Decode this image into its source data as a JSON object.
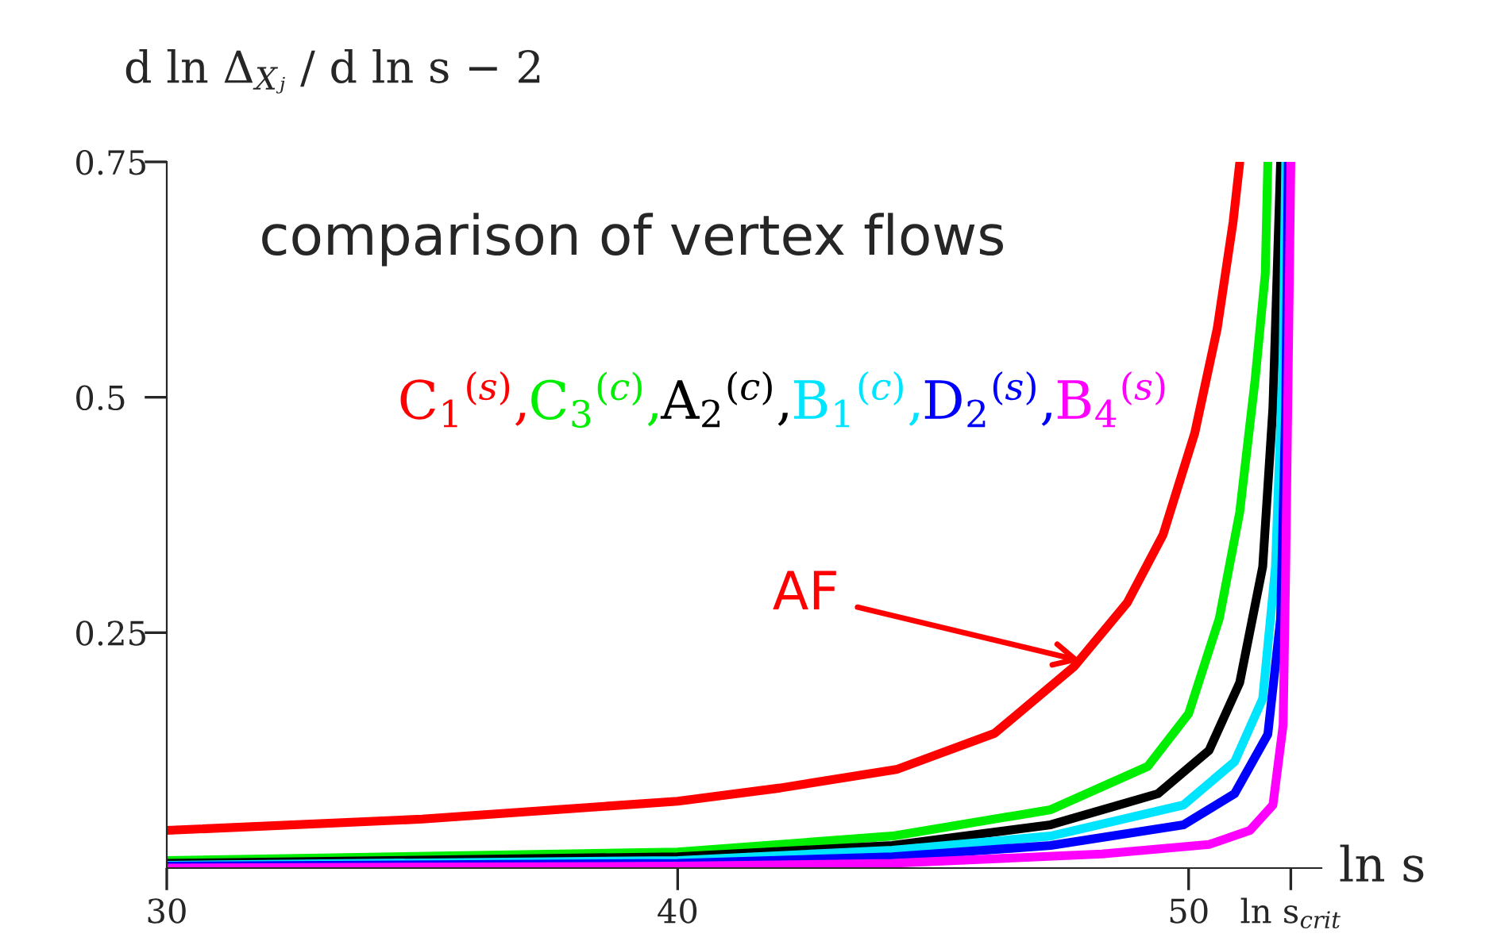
{
  "chart_data": {
    "type": "line",
    "title": "comparison of vertex flows",
    "ylabel": "d ln Δ$_{Xⱼ}$ / d ln s − 2",
    "xlabel": "ln s",
    "xlim": [
      30,
      52.6
    ],
    "xticks": [
      30,
      40,
      50,
      {
        "value": 52,
        "label": "ln s$_{crit}$"
      }
    ],
    "ylim": [
      0,
      0.75
    ],
    "yticks": [
      0.25,
      0.5,
      0.75
    ],
    "grid": false,
    "line_style": "solid",
    "marker": "none",
    "annotations": [
      {
        "text": "AF",
        "x": 47.9,
        "y": 0.22
      }
    ],
    "series": [
      {
        "name": "C$_{1}$$^{(s)}$,",
        "color": "#ff0000",
        "x": [
          30,
          35,
          40,
          42,
          44.3,
          46.2,
          47.76,
          48.8,
          49.5,
          50.12,
          50.56,
          50.87,
          51.0
        ],
        "values": [
          0.04,
          0.052,
          0.071,
          0.085,
          0.105,
          0.143,
          0.214,
          0.282,
          0.354,
          0.462,
          0.573,
          0.686,
          0.749
        ]
      },
      {
        "name": "C$_{3}$$^{(c)}$,",
        "color": "#00ee00",
        "x": [
          30,
          40,
          44.2,
          47.3,
          49.2,
          50.0,
          50.6,
          51.0,
          51.3,
          51.5,
          51.55
        ],
        "values": [
          0.008,
          0.017,
          0.034,
          0.062,
          0.108,
          0.164,
          0.265,
          0.378,
          0.518,
          0.631,
          0.749
        ]
      },
      {
        "name": "A$_{2}$$^{(c)}$,",
        "color": "#000000",
        "x": [
          30,
          40,
          44.2,
          47.3,
          49.4,
          50.4,
          51.0,
          51.45,
          51.65,
          51.8
        ],
        "values": [
          0.005,
          0.012,
          0.024,
          0.046,
          0.079,
          0.125,
          0.197,
          0.32,
          0.489,
          0.749
        ]
      },
      {
        "name": "B$_{1}$$^{(c)}$,",
        "color": "#00e5ff",
        "x": [
          30,
          40,
          44.2,
          47.3,
          49.9,
          50.9,
          51.45,
          51.7,
          51.85,
          51.9
        ],
        "values": [
          0.003,
          0.008,
          0.019,
          0.034,
          0.067,
          0.113,
          0.18,
          0.32,
          0.546,
          0.749
        ]
      },
      {
        "name": "D$_{2}$$^{(s)}$,",
        "color": "#0000ff",
        "x": [
          30,
          40,
          44.2,
          47.3,
          49.9,
          50.9,
          51.55,
          51.8,
          51.9,
          51.95
        ],
        "values": [
          0.002,
          0.005,
          0.012,
          0.024,
          0.046,
          0.079,
          0.142,
          0.265,
          0.489,
          0.749
        ]
      },
      {
        "name": "B$_{4}$$^{(s)}$",
        "color": "#ff00ff",
        "x": [
          30,
          40,
          44.2,
          48.3,
          50.4,
          51.2,
          51.65,
          51.85,
          51.9,
          52.0
        ],
        "values": [
          0.0,
          0.002,
          0.005,
          0.015,
          0.025,
          0.04,
          0.067,
          0.152,
          0.32,
          0.749
        ]
      }
    ]
  }
}
